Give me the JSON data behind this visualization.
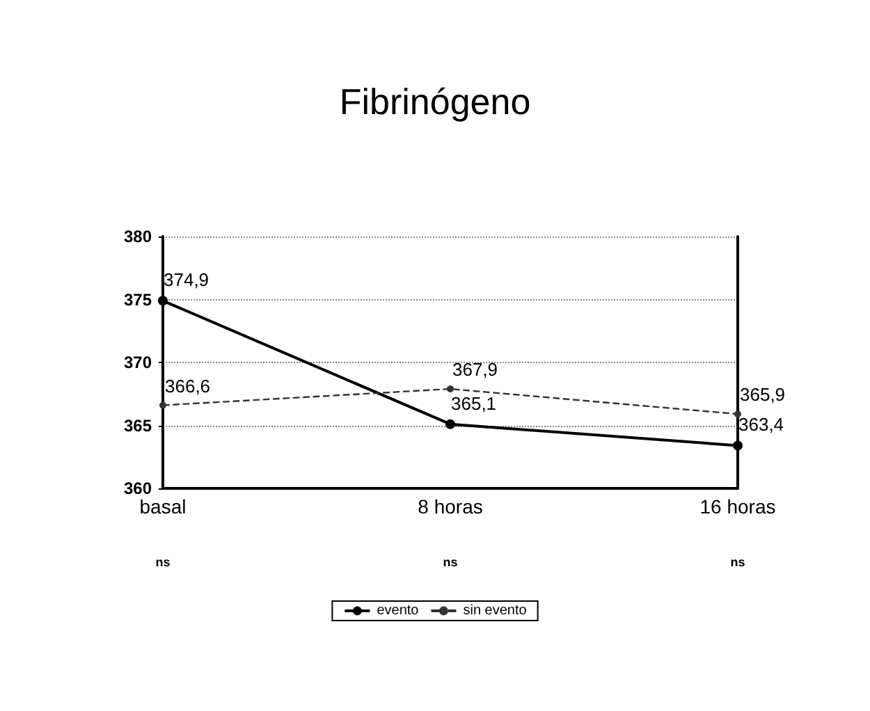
{
  "chart_data": {
    "type": "line",
    "title": "Fibrinógeno",
    "categories": [
      "basal",
      "8 horas",
      "16 horas"
    ],
    "series": [
      {
        "name": "evento",
        "color": "#000000",
        "values": [
          374.9,
          365.1,
          363.4
        ],
        "value_labels": [
          "374,9",
          "365,1",
          "363,4"
        ],
        "line_style": "solid"
      },
      {
        "name": "sin evento",
        "color": "#333333",
        "values": [
          366.6,
          367.9,
          365.9
        ],
        "value_labels": [
          "366,6",
          "367,9",
          "365,9"
        ],
        "line_style": "dashed"
      }
    ],
    "ylim": [
      360,
      380
    ],
    "yticks": [
      360,
      365,
      370,
      375,
      380
    ],
    "grid": "y",
    "legend": "bottom",
    "marker": "circle",
    "annotations": [
      "ns",
      "ns",
      "ns"
    ]
  }
}
